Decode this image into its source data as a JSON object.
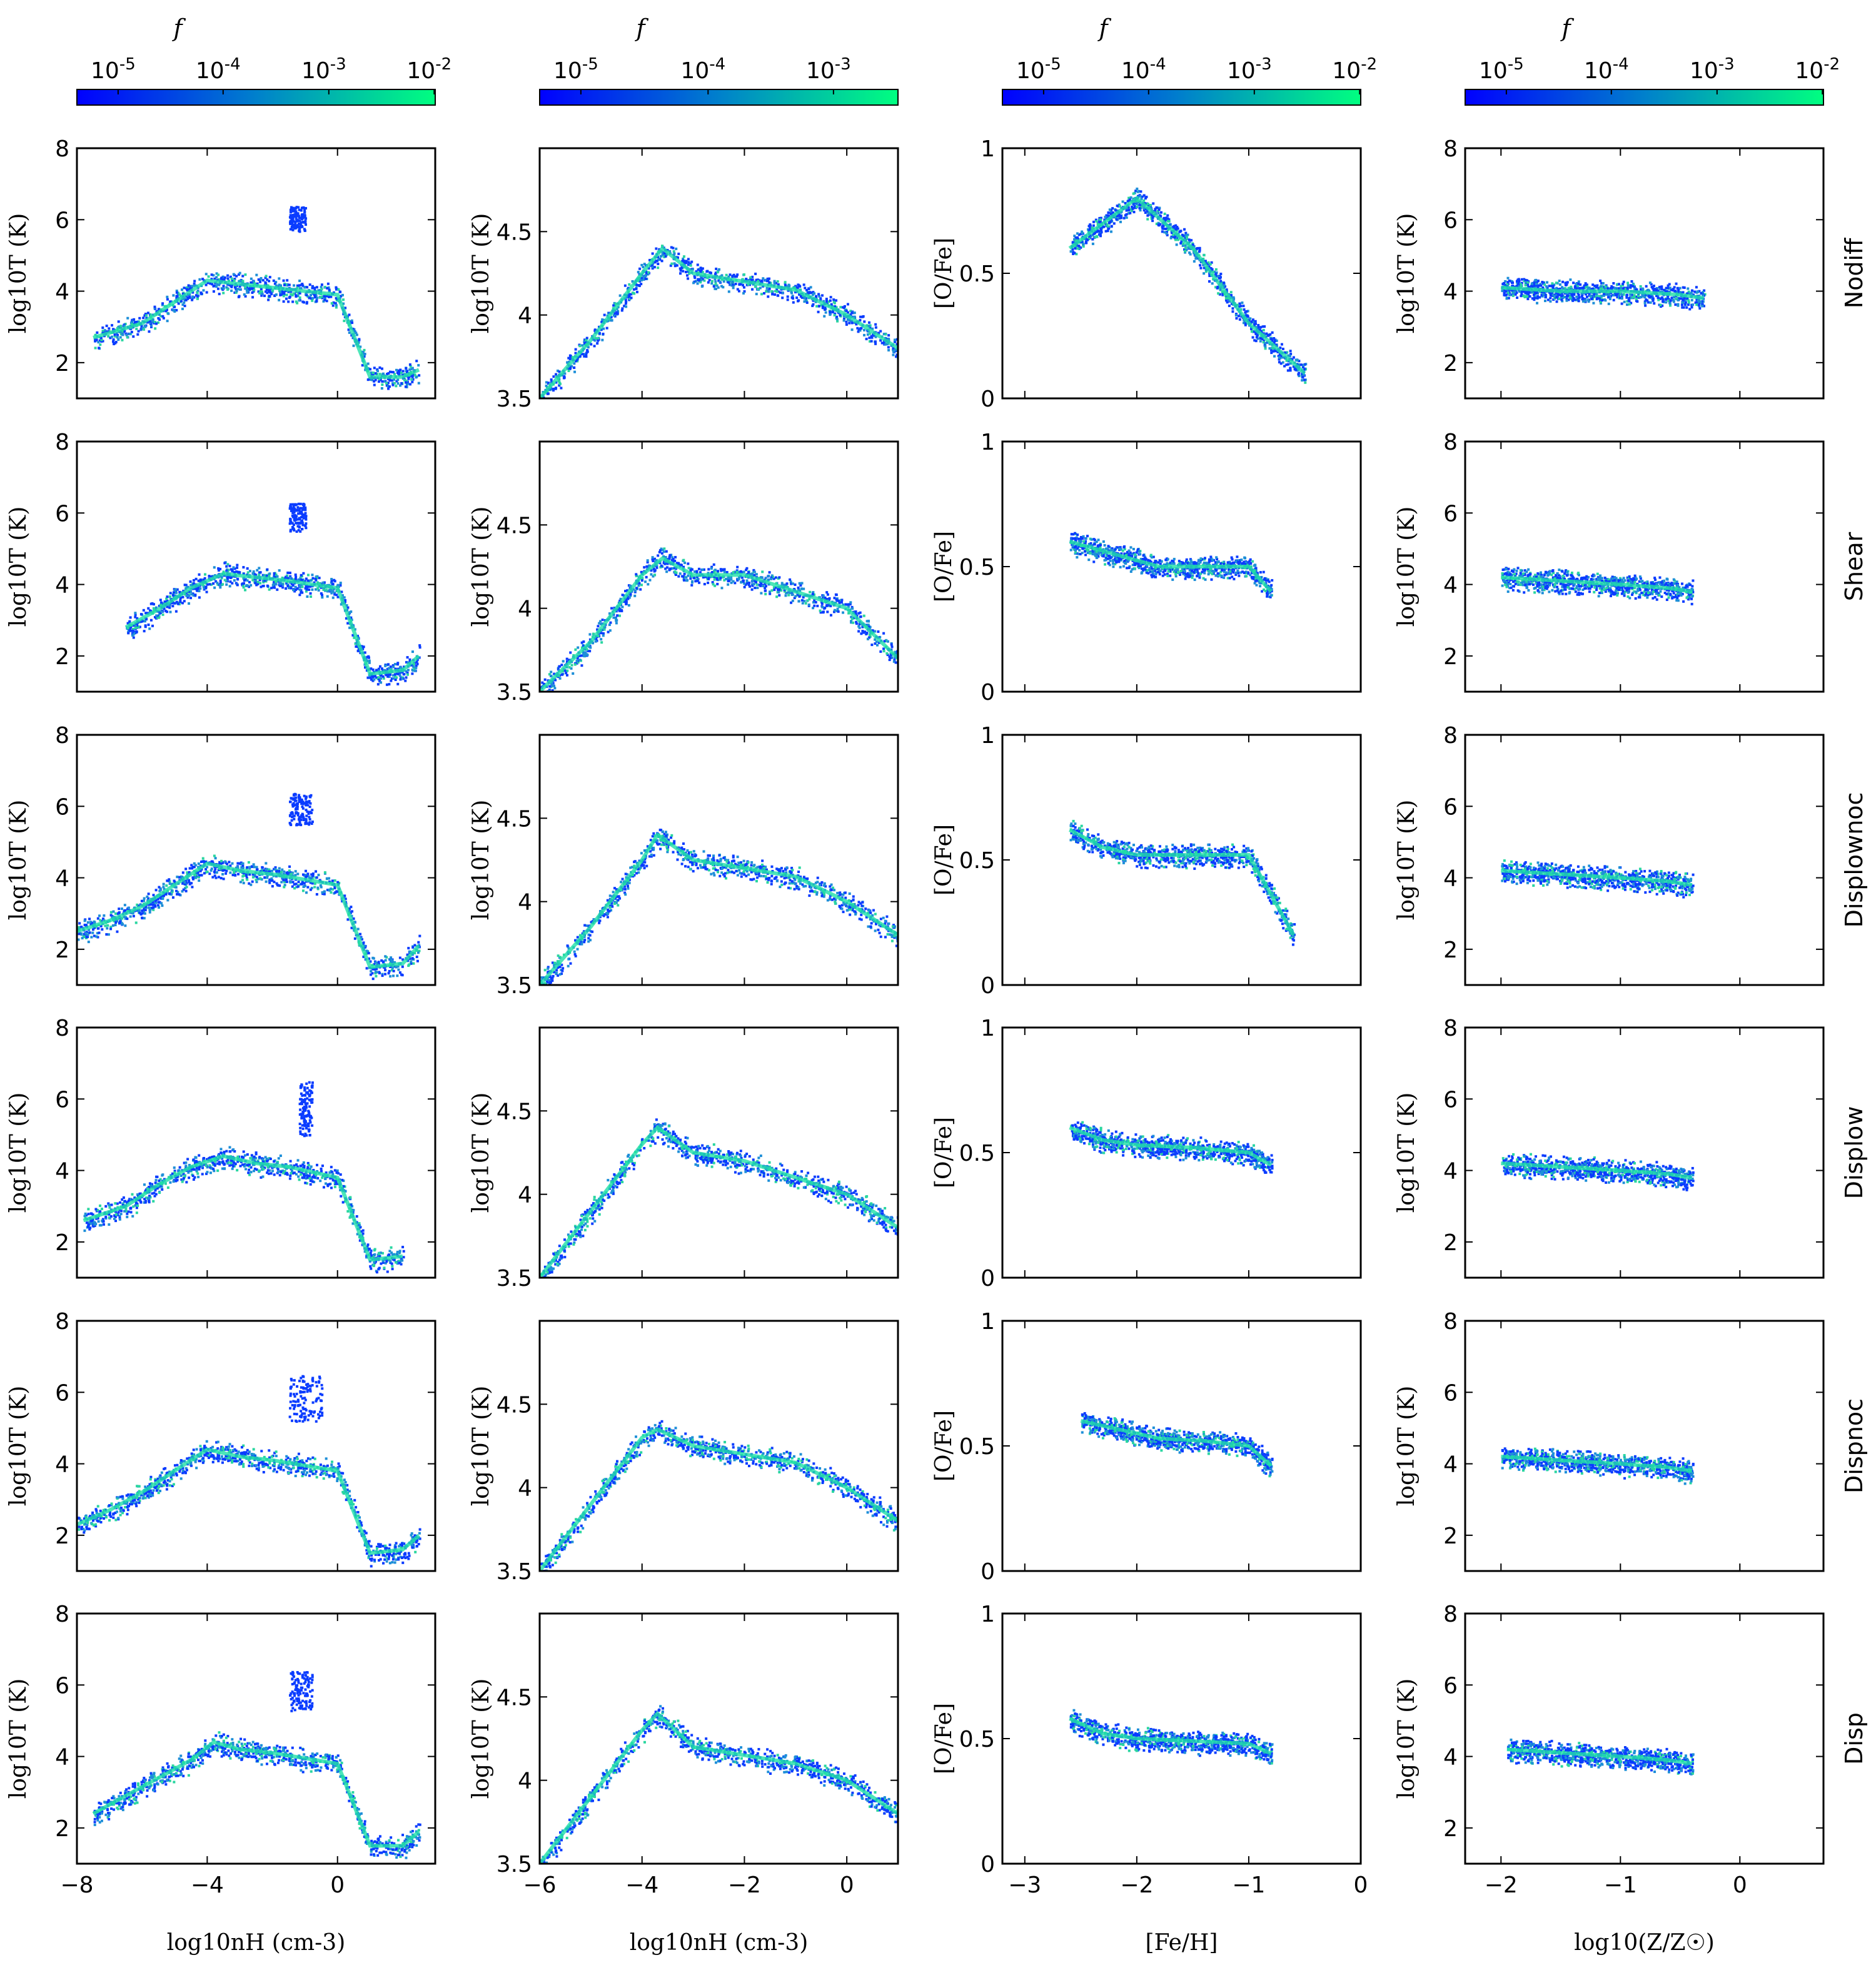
{
  "colormap": {
    "low": "#0000ff",
    "high": "#00ff80"
  },
  "colorbars": [
    {
      "title": "f",
      "ticks": [
        "10-5",
        "10-4",
        "10-3",
        "10-2"
      ]
    },
    {
      "title": "f",
      "ticks": [
        "10-5",
        "10-4",
        "10-3"
      ]
    },
    {
      "title": "f",
      "ticks": [
        "10-5",
        "10-4",
        "10-3",
        "10-2"
      ]
    },
    {
      "title": "f",
      "ticks": [
        "10-5",
        "10-4",
        "10-3",
        "10-2"
      ]
    }
  ],
  "rows": [
    "Nodiff",
    "Shear",
    "Displownoc",
    "Displow",
    "Dispnoc",
    "Disp"
  ],
  "chart_data": [
    {
      "type": "heatmap",
      "column": "log10 T vs log10 nH (wide)",
      "xlabel": "log10nH (cm-3)",
      "ylabel": "log10T (K)",
      "xlim": [
        -8,
        3
      ],
      "ylim": [
        1,
        8
      ],
      "xticks": [
        -8,
        -4,
        0
      ],
      "yticks": [
        2,
        4,
        6,
        8
      ],
      "series": [
        {
          "name": "Nodiff",
          "x": [
            -7.5,
            -6,
            -5,
            -4,
            -3,
            -2,
            -1,
            0,
            1,
            2,
            2.5
          ],
          "y": [
            2.7,
            3.1,
            3.7,
            4.3,
            4.2,
            4.1,
            4.0,
            3.9,
            1.6,
            1.6,
            1.8
          ],
          "hot": {
            "x": [
              -1.5,
              -1.0
            ],
            "y": [
              5.7,
              6.4
            ]
          }
        },
        {
          "name": "Shear",
          "x": [
            -6.5,
            -5.5,
            -4.5,
            -3.5,
            -2.5,
            -1.5,
            0,
            1,
            2,
            2.5
          ],
          "y": [
            2.8,
            3.3,
            3.9,
            4.3,
            4.2,
            4.1,
            3.9,
            1.5,
            1.6,
            2.0
          ],
          "hot": {
            "x": [
              -1.5,
              -1.0
            ],
            "y": [
              5.5,
              6.3
            ]
          }
        },
        {
          "name": "Displownoc",
          "x": [
            -8,
            -7,
            -6,
            -5,
            -4,
            -3,
            -2,
            0,
            1,
            2,
            2.5
          ],
          "y": [
            2.5,
            2.8,
            3.2,
            3.8,
            4.4,
            4.2,
            4.1,
            3.8,
            1.5,
            1.6,
            2.1
          ],
          "hot": {
            "x": [
              -1.5,
              -0.8
            ],
            "y": [
              5.5,
              6.4
            ]
          }
        },
        {
          "name": "Displow",
          "x": [
            -7.8,
            -6.5,
            -5.5,
            -4.5,
            -3.5,
            -2.5,
            -1.5,
            0,
            1,
            2
          ],
          "y": [
            2.6,
            3.0,
            3.6,
            4.1,
            4.4,
            4.2,
            4.1,
            3.8,
            1.5,
            1.6
          ],
          "hot": {
            "x": [
              -1.2,
              -0.8
            ],
            "y": [
              5.0,
              6.5
            ]
          }
        },
        {
          "name": "Dispnoc",
          "x": [
            -8,
            -7,
            -6,
            -5,
            -4,
            -3,
            -2,
            0,
            1,
            2,
            2.5
          ],
          "y": [
            2.3,
            2.7,
            3.2,
            3.8,
            4.4,
            4.2,
            4.1,
            3.8,
            1.5,
            1.6,
            2.0
          ],
          "hot": {
            "x": [
              -1.5,
              -0.5
            ],
            "y": [
              5.2,
              6.5
            ]
          }
        },
        {
          "name": "Disp",
          "x": [
            -7.5,
            -6.5,
            -5.5,
            -4.5,
            -3.8,
            -3,
            -2,
            0,
            1,
            2,
            2.5
          ],
          "y": [
            2.4,
            2.9,
            3.4,
            3.9,
            4.4,
            4.2,
            4.1,
            3.8,
            1.5,
            1.5,
            1.9
          ],
          "hot": {
            "x": [
              -1.5,
              -0.8
            ],
            "y": [
              5.3,
              6.4
            ]
          }
        }
      ]
    },
    {
      "type": "heatmap",
      "column": "log10 T vs log10 nH (zoom)",
      "xlabel": "log10nH (cm-3)",
      "ylabel": "log10T (K)",
      "xlim": [
        -6,
        1
      ],
      "ylim": [
        3.5,
        5.0
      ],
      "xticks": [
        -6,
        -4,
        -2,
        0
      ],
      "yticks": [
        3.5,
        4.0,
        4.5
      ],
      "series": [
        {
          "name": "Nodiff",
          "x": [
            -6,
            -5,
            -4,
            -3.6,
            -3,
            -2,
            -1,
            0,
            1
          ],
          "y": [
            3.5,
            3.85,
            4.25,
            4.4,
            4.25,
            4.2,
            4.15,
            4.0,
            3.8
          ]
        },
        {
          "name": "Shear",
          "x": [
            -6,
            -5,
            -4,
            -3.6,
            -3,
            -2,
            -1,
            0,
            1
          ],
          "y": [
            3.5,
            3.8,
            4.2,
            4.3,
            4.2,
            4.2,
            4.1,
            4.0,
            3.7
          ]
        },
        {
          "name": "Displownoc",
          "x": [
            -6,
            -5,
            -4,
            -3.7,
            -3,
            -2,
            -1,
            0,
            1
          ],
          "y": [
            3.5,
            3.85,
            4.25,
            4.4,
            4.25,
            4.2,
            4.15,
            4.0,
            3.8
          ]
        },
        {
          "name": "Displow",
          "x": [
            -6,
            -5,
            -4,
            -3.7,
            -3,
            -2,
            -1,
            0,
            1
          ],
          "y": [
            3.5,
            3.9,
            4.3,
            4.4,
            4.25,
            4.2,
            4.1,
            4.0,
            3.8
          ]
        },
        {
          "name": "Dispnoc",
          "x": [
            -6,
            -5,
            -4,
            -3.7,
            -3,
            -2,
            -1,
            0,
            1
          ],
          "y": [
            3.5,
            3.9,
            4.3,
            4.35,
            4.25,
            4.2,
            4.15,
            4.0,
            3.8
          ]
        },
        {
          "name": "Disp",
          "x": [
            -6,
            -5,
            -4,
            -3.7,
            -3,
            -2,
            -1,
            0,
            1
          ],
          "y": [
            3.5,
            3.9,
            4.3,
            4.4,
            4.2,
            4.15,
            4.1,
            4.0,
            3.8
          ]
        }
      ]
    },
    {
      "type": "heatmap",
      "column": "[O/Fe] vs [Fe/H]",
      "xlabel": "[Fe/H]",
      "ylabel": "[O/Fe]",
      "xlim": [
        -3.2,
        0
      ],
      "ylim": [
        0,
        1.0
      ],
      "xticks": [
        -3,
        -2,
        -1,
        0
      ],
      "yticks": [
        0.0,
        0.5,
        1.0
      ],
      "series": [
        {
          "name": "Nodiff",
          "x": [
            -2.6,
            -2.0,
            -1.5,
            -1.0,
            -0.5
          ],
          "y": [
            0.6,
            0.8,
            0.6,
            0.3,
            0.1
          ]
        },
        {
          "name": "Shear",
          "x": [
            -2.6,
            -2.2,
            -1.8,
            -1.4,
            -1.0,
            -0.8
          ],
          "y": [
            0.6,
            0.55,
            0.5,
            0.5,
            0.5,
            0.4
          ]
        },
        {
          "name": "Displownoc",
          "x": [
            -2.6,
            -2.3,
            -2.0,
            -1.5,
            -1.0,
            -0.6
          ],
          "y": [
            0.62,
            0.55,
            0.52,
            0.52,
            0.52,
            0.2
          ]
        },
        {
          "name": "Displow",
          "x": [
            -2.6,
            -2.3,
            -2.0,
            -1.5,
            -1.0,
            -0.8
          ],
          "y": [
            0.6,
            0.55,
            0.53,
            0.52,
            0.5,
            0.45
          ]
        },
        {
          "name": "Dispnoc",
          "x": [
            -2.5,
            -2.2,
            -1.8,
            -1.4,
            -1.0,
            -0.8
          ],
          "y": [
            0.6,
            0.57,
            0.53,
            0.52,
            0.5,
            0.42
          ]
        },
        {
          "name": "Disp",
          "x": [
            -2.6,
            -2.3,
            -2.0,
            -1.5,
            -1.0,
            -0.8
          ],
          "y": [
            0.58,
            0.52,
            0.5,
            0.49,
            0.48,
            0.44
          ]
        }
      ]
    },
    {
      "type": "heatmap",
      "column": "log10 T vs log10 Z/Zsun",
      "xlabel": "log10(Z/Z☉)",
      "ylabel": "log10T (K)",
      "xlim": [
        -2.3,
        0.7
      ],
      "ylim": [
        1,
        8
      ],
      "xticks": [
        -2,
        -1,
        0
      ],
      "yticks": [
        2,
        4,
        6,
        8
      ],
      "series": [
        {
          "name": "Nodiff",
          "x": [
            -2.0,
            -1.5,
            -1.0,
            -0.5,
            -0.3
          ],
          "y": [
            4.1,
            4.0,
            4.0,
            3.9,
            3.8
          ]
        },
        {
          "name": "Shear",
          "x": [
            -2.0,
            -1.5,
            -1.0,
            -0.6,
            -0.4
          ],
          "y": [
            4.2,
            4.1,
            4.0,
            3.9,
            3.8
          ]
        },
        {
          "name": "Displownoc",
          "x": [
            -2.0,
            -1.5,
            -1.0,
            -0.6,
            -0.4
          ],
          "y": [
            4.2,
            4.1,
            4.0,
            3.9,
            3.8
          ]
        },
        {
          "name": "Displow",
          "x": [
            -2.0,
            -1.5,
            -1.0,
            -0.6,
            -0.4
          ],
          "y": [
            4.2,
            4.1,
            4.0,
            3.9,
            3.8
          ]
        },
        {
          "name": "Dispnoc",
          "x": [
            -2.0,
            -1.5,
            -1.0,
            -0.6,
            -0.4
          ],
          "y": [
            4.2,
            4.1,
            4.0,
            3.9,
            3.8
          ]
        },
        {
          "name": "Disp",
          "x": [
            -1.95,
            -1.5,
            -1.0,
            -0.6,
            -0.4
          ],
          "y": [
            4.2,
            4.1,
            4.0,
            3.9,
            3.8
          ]
        }
      ]
    }
  ]
}
